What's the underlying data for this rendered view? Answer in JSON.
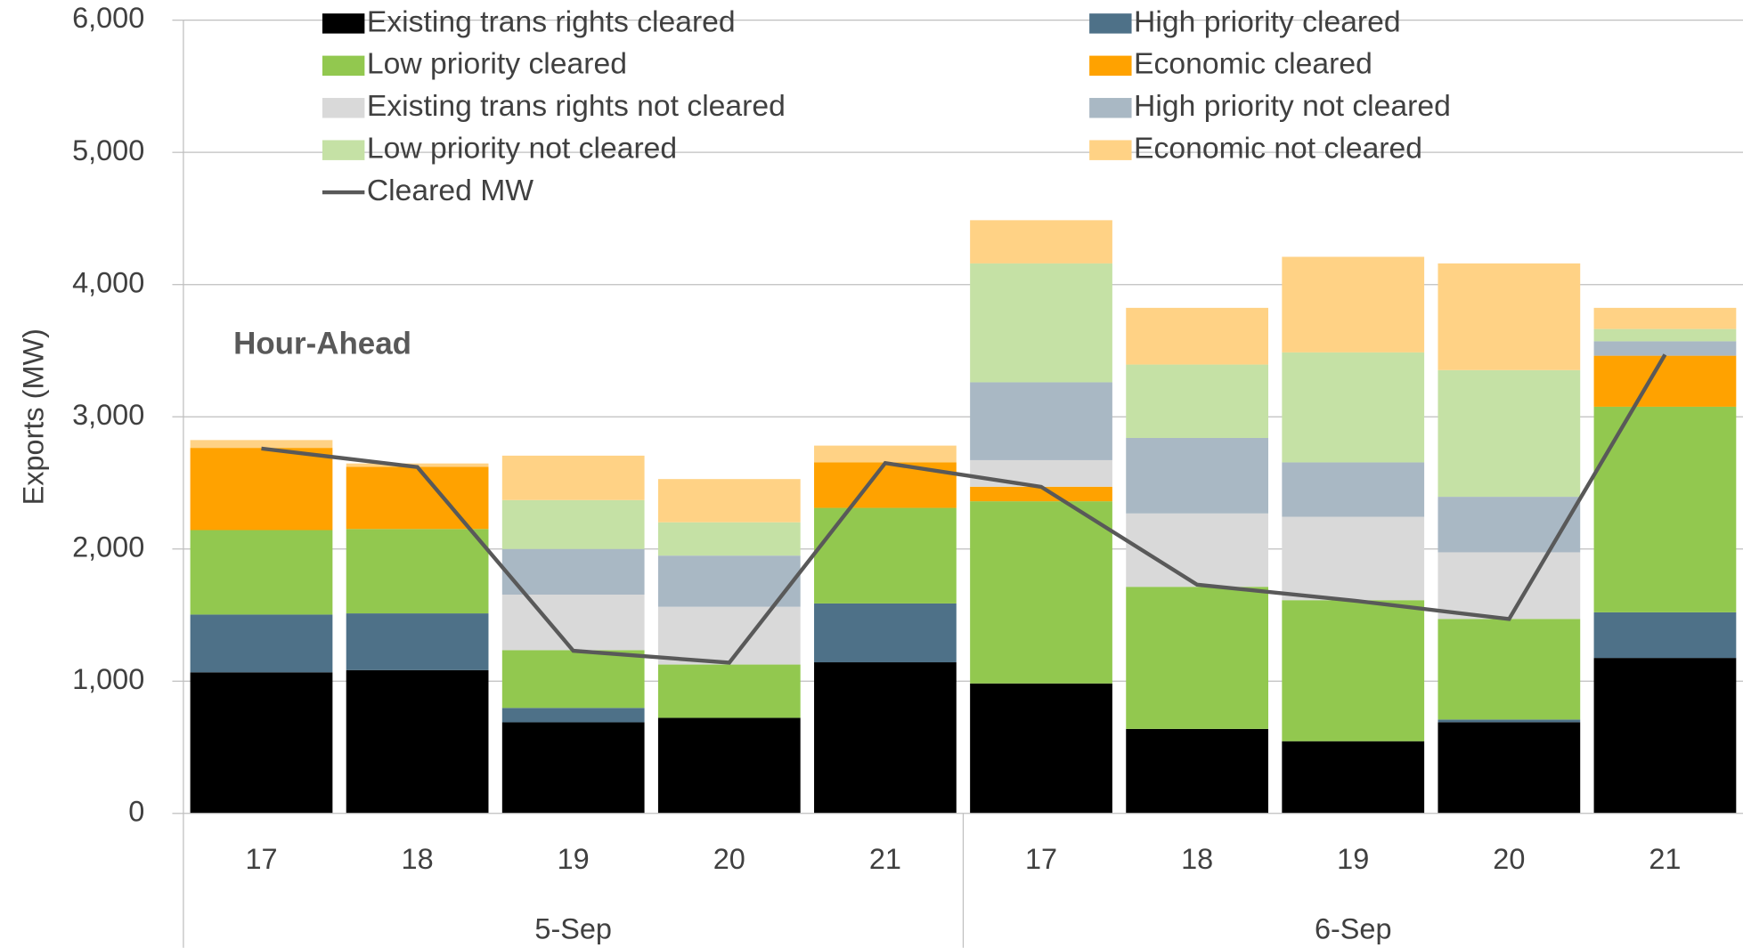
{
  "chart_data": {
    "type": "bar",
    "stacked": true,
    "ylabel": "Exports (MW)",
    "annotation": "Hour-Ahead",
    "categories": [
      "17",
      "18",
      "19",
      "20",
      "21",
      "17",
      "18",
      "19",
      "20",
      "21"
    ],
    "groups": [
      "5-Sep",
      "6-Sep"
    ],
    "ylim": [
      0,
      6000
    ],
    "yticks": [
      0,
      {
        "value": 1000,
        "label": "1,000"
      },
      {
        "value": 2000,
        "label": "2,000"
      },
      {
        "value": 3000,
        "label": "3,000"
      },
      {
        "value": 4000,
        "label": "4,000"
      },
      {
        "value": 5000,
        "label": "5,000"
      },
      {
        "value": 6000,
        "label": "6,000"
      }
    ],
    "grid": true,
    "legend": "top",
    "series": [
      {
        "name": "Existing trans rights cleared",
        "color": "#000000",
        "values": [
          1067,
          1084,
          689,
          723,
          1143,
          983,
          639,
          546,
          690,
          1176
        ]
      },
      {
        "name": "High priority cleared",
        "color": "#4e7188",
        "values": [
          437,
          429,
          109,
          0,
          445,
          0,
          0,
          0,
          20,
          345
        ]
      },
      {
        "name": "Low priority cleared",
        "color": "#92c84f",
        "values": [
          639,
          638,
          437,
          403,
          723,
          1378,
          1075,
          1067,
          761,
          1555
        ]
      },
      {
        "name": "Economic cleared",
        "color": "#ffa200",
        "values": [
          622,
          471,
          0,
          0,
          344,
          110,
          0,
          0,
          0,
          386
        ]
      },
      {
        "name": "Existing trans rights not cleared",
        "color": "#d9d9d9",
        "values": [
          0,
          0,
          420,
          437,
          0,
          201,
          555,
          631,
          504,
          0
        ]
      },
      {
        "name": "High priority not cleared",
        "color": "#a9b8c4",
        "values": [
          0,
          0,
          345,
          387,
          0,
          589,
          571,
          411,
          420,
          109
        ]
      },
      {
        "name": "Low priority not cleared",
        "color": "#c5e1a5",
        "values": [
          0,
          0,
          370,
          252,
          0,
          899,
          555,
          832,
          958,
          93
        ]
      },
      {
        "name": "Economic not cleared",
        "color": "#ffd285",
        "values": [
          59,
          25,
          336,
          327,
          127,
          327,
          429,
          723,
          807,
          160
        ]
      },
      {
        "name": "Cleared MW",
        "color": "#595959",
        "type": "line",
        "values": [
          2760,
          2620,
          1230,
          1140,
          2650,
          2470,
          1730,
          1610,
          1470,
          3470
        ]
      }
    ]
  }
}
